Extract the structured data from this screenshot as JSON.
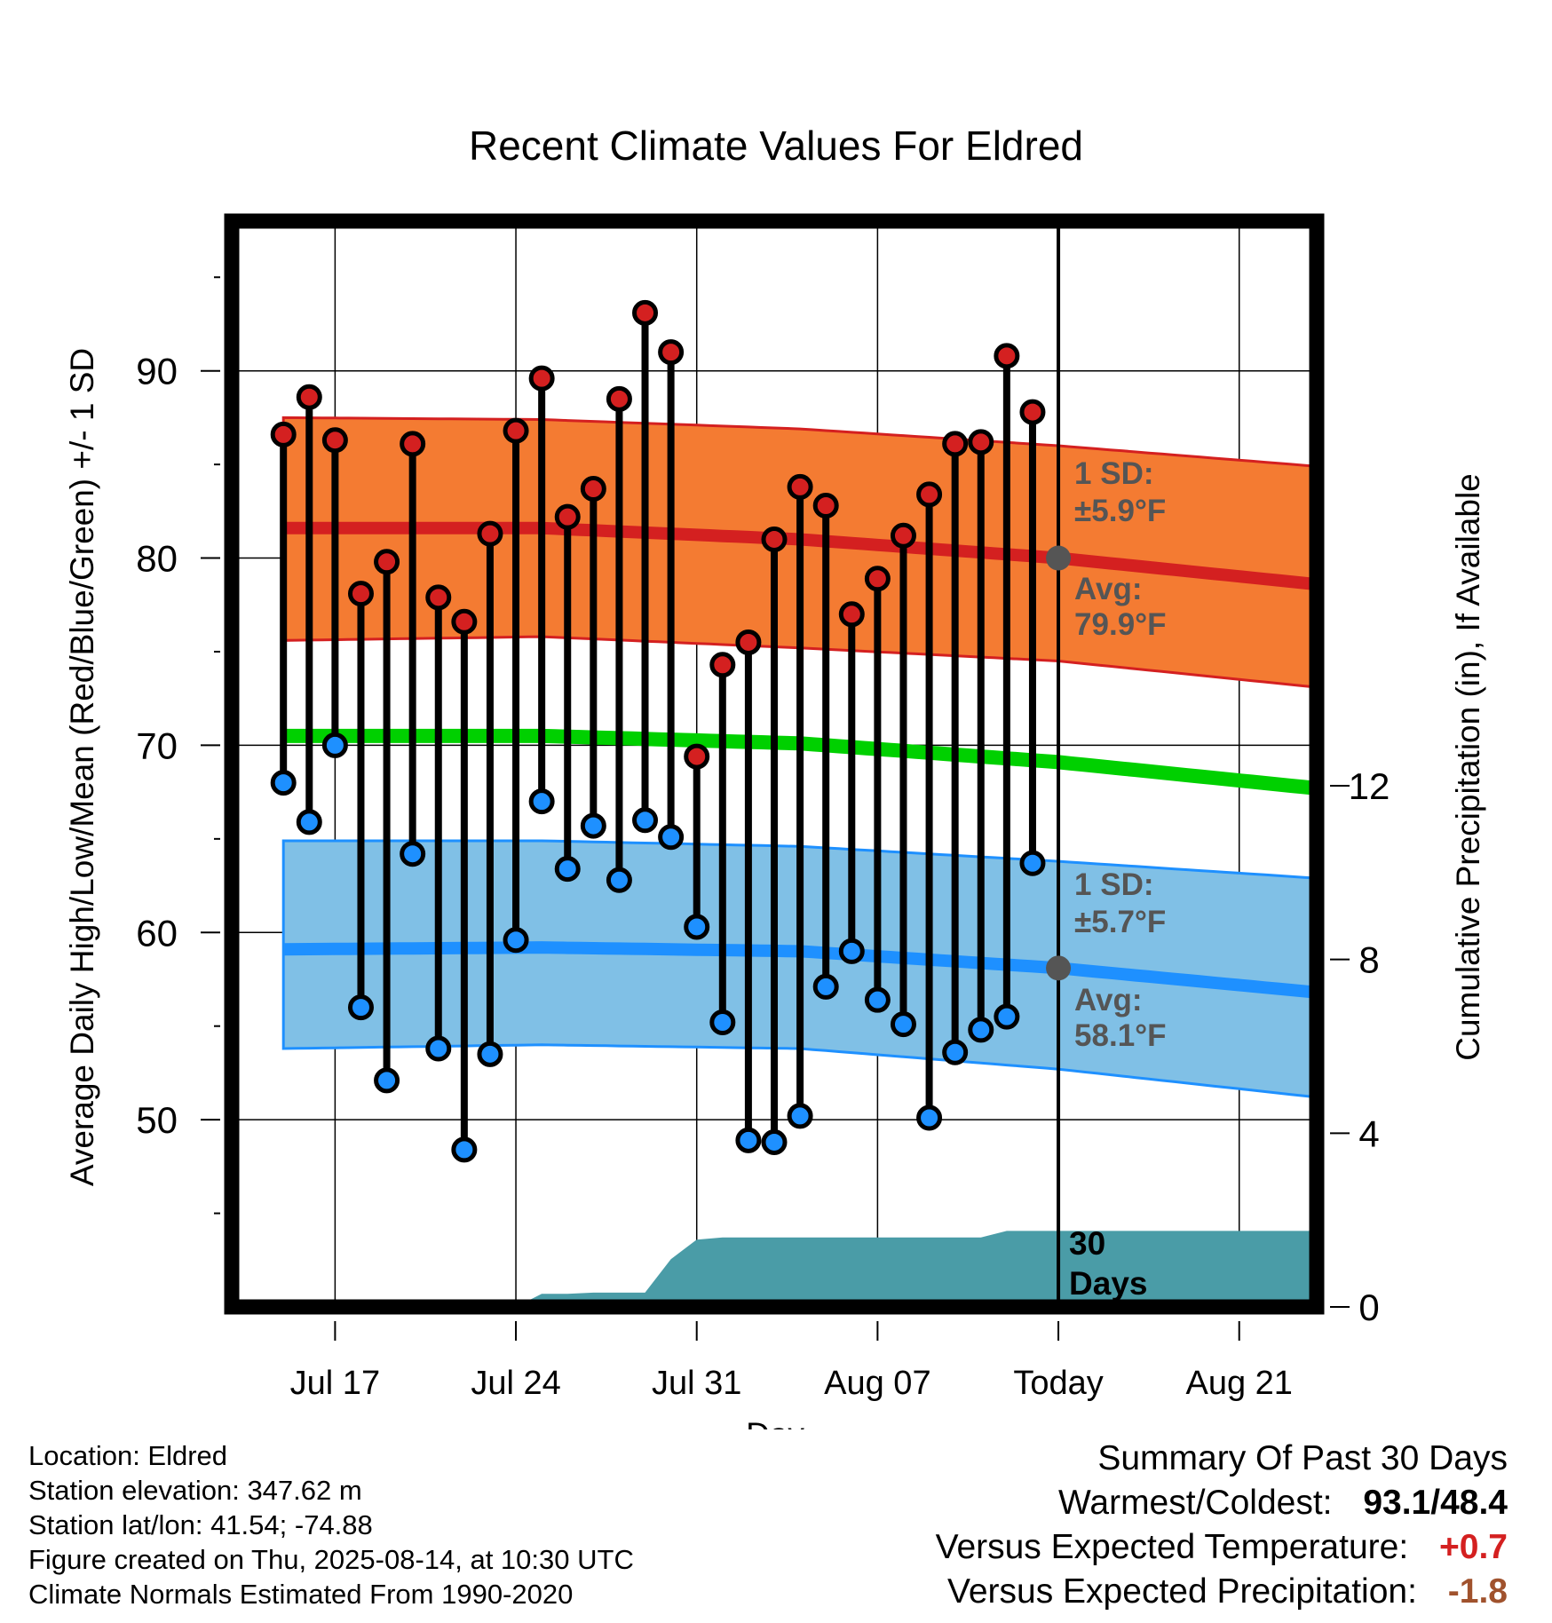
{
  "chart_data": {
    "type": "line",
    "title": "Recent Climate Values For Eldred",
    "xlabel": "Day",
    "ylabel_left": "Average Daily High/Low/Mean (Red/Blue/Green) +/- 1 SD",
    "ylabel_right": "Cumulative Precipitation (in), If Available",
    "x_tick_labels": [
      "Jul 17",
      "Jul 24",
      "Jul 31",
      "Aug 07",
      "Today",
      "Aug 21"
    ],
    "x_tick_days": [
      17,
      24,
      31,
      38,
      45,
      52
    ],
    "xlim": [
      13,
      55
    ],
    "y_left_ticks": [
      50,
      60,
      70,
      80,
      90
    ],
    "y_left_lim": [
      40,
      98
    ],
    "y_right_ticks": [
      0,
      4,
      8,
      12
    ],
    "y_right_lim": [
      0,
      25
    ],
    "today_day": 45,
    "daily_highs": [
      86.6,
      88.6,
      86.3,
      78.1,
      79.8,
      86.1,
      77.9,
      76.6,
      81.3,
      86.8,
      89.6,
      82.2,
      83.7,
      88.5,
      93.1,
      91.0,
      69.4,
      74.3,
      75.5,
      81.0,
      83.8,
      82.8,
      77.0,
      78.9,
      81.2,
      83.4,
      86.1,
      86.2,
      90.8,
      87.8
    ],
    "daily_lows": [
      68.0,
      65.9,
      70.0,
      56.0,
      52.1,
      64.2,
      53.8,
      48.4,
      53.5,
      59.6,
      67.0,
      63.4,
      65.7,
      62.8,
      66.0,
      65.1,
      60.3,
      55.2,
      48.9,
      48.8,
      50.2,
      57.1,
      59.0,
      56.4,
      55.1,
      50.1,
      53.6,
      54.8,
      55.5,
      63.7
    ],
    "day_start": 15,
    "normal_high": {
      "days": [
        15,
        25,
        35,
        45,
        55
      ],
      "values": [
        81.6,
        81.6,
        81.0,
        80.0,
        78.6
      ]
    },
    "normal_low": {
      "days": [
        15,
        25,
        35,
        45,
        55
      ],
      "values": [
        59.1,
        59.2,
        59.0,
        58.1,
        56.8
      ]
    },
    "normal_mean": {
      "days": [
        15,
        25,
        35,
        45,
        55
      ],
      "values": [
        70.5,
        70.5,
        70.1,
        69.1,
        67.7
      ]
    },
    "high_band": {
      "days": [
        15,
        25,
        35,
        45,
        55
      ],
      "upper": [
        87.5,
        87.4,
        86.9,
        86.0,
        84.9
      ],
      "lower": [
        75.6,
        75.8,
        75.2,
        74.5,
        73.1
      ]
    },
    "low_band": {
      "days": [
        15,
        25,
        35,
        45,
        55
      ],
      "upper": [
        64.9,
        64.9,
        64.6,
        63.8,
        62.9
      ],
      "lower": [
        53.8,
        54.0,
        53.8,
        52.7,
        51.2
      ]
    },
    "precip_cumulative": {
      "days": [
        24,
        25,
        26,
        27,
        28,
        29,
        30,
        31,
        32,
        33,
        34,
        35,
        36,
        37,
        38,
        39,
        40,
        41,
        42,
        43,
        44,
        45,
        55
      ],
      "values": [
        0.0,
        0.3,
        0.3,
        0.33,
        0.33,
        0.33,
        1.1,
        1.55,
        1.6,
        1.6,
        1.6,
        1.6,
        1.6,
        1.6,
        1.6,
        1.6,
        1.6,
        1.6,
        1.6,
        1.75,
        1.75,
        1.75,
        1.75
      ]
    },
    "annotations": {
      "high_sd_label": "1 SD:",
      "high_sd_value": "±5.9°F",
      "high_avg_label": "Avg:",
      "high_avg_value": "79.9°F",
      "low_sd_label": "1 SD:",
      "low_sd_value": "±5.7°F",
      "low_avg_label": "Avg:",
      "low_avg_value": "58.1°F",
      "window_number": "30",
      "window_unit": "Days"
    },
    "colors": {
      "high_band": "#f47b32",
      "high_line": "#d42020",
      "low_band": "#80c0e6",
      "low_line": "#1e90ff",
      "mean_line": "#00d000",
      "precip": "#4a9ca7",
      "high_marker": "#d42020",
      "low_marker": "#1e90ff",
      "annotation": "#555555"
    }
  },
  "info": {
    "location": "Location: Eldred",
    "elevation": "Station elevation: 347.62 m",
    "latlon": "Station lat/lon: 41.54; -74.88",
    "created": "Figure created on Thu, 2025-08-14, at 10:30 UTC",
    "normals": "Climate Normals Estimated From 1990-2020"
  },
  "summary": {
    "title": "Summary Of Past 30 Days",
    "warm_cold_label": "Warmest/Coldest:",
    "warmest": "93.1",
    "slash": "/",
    "coldest": "48.4",
    "temp_label": "Versus Expected Temperature:",
    "temp_value": "+0.7",
    "temp_color": "#d42020",
    "precip_label": "Versus Expected Precipitation:",
    "precip_value": "-1.8",
    "precip_color": "#a0522d"
  }
}
